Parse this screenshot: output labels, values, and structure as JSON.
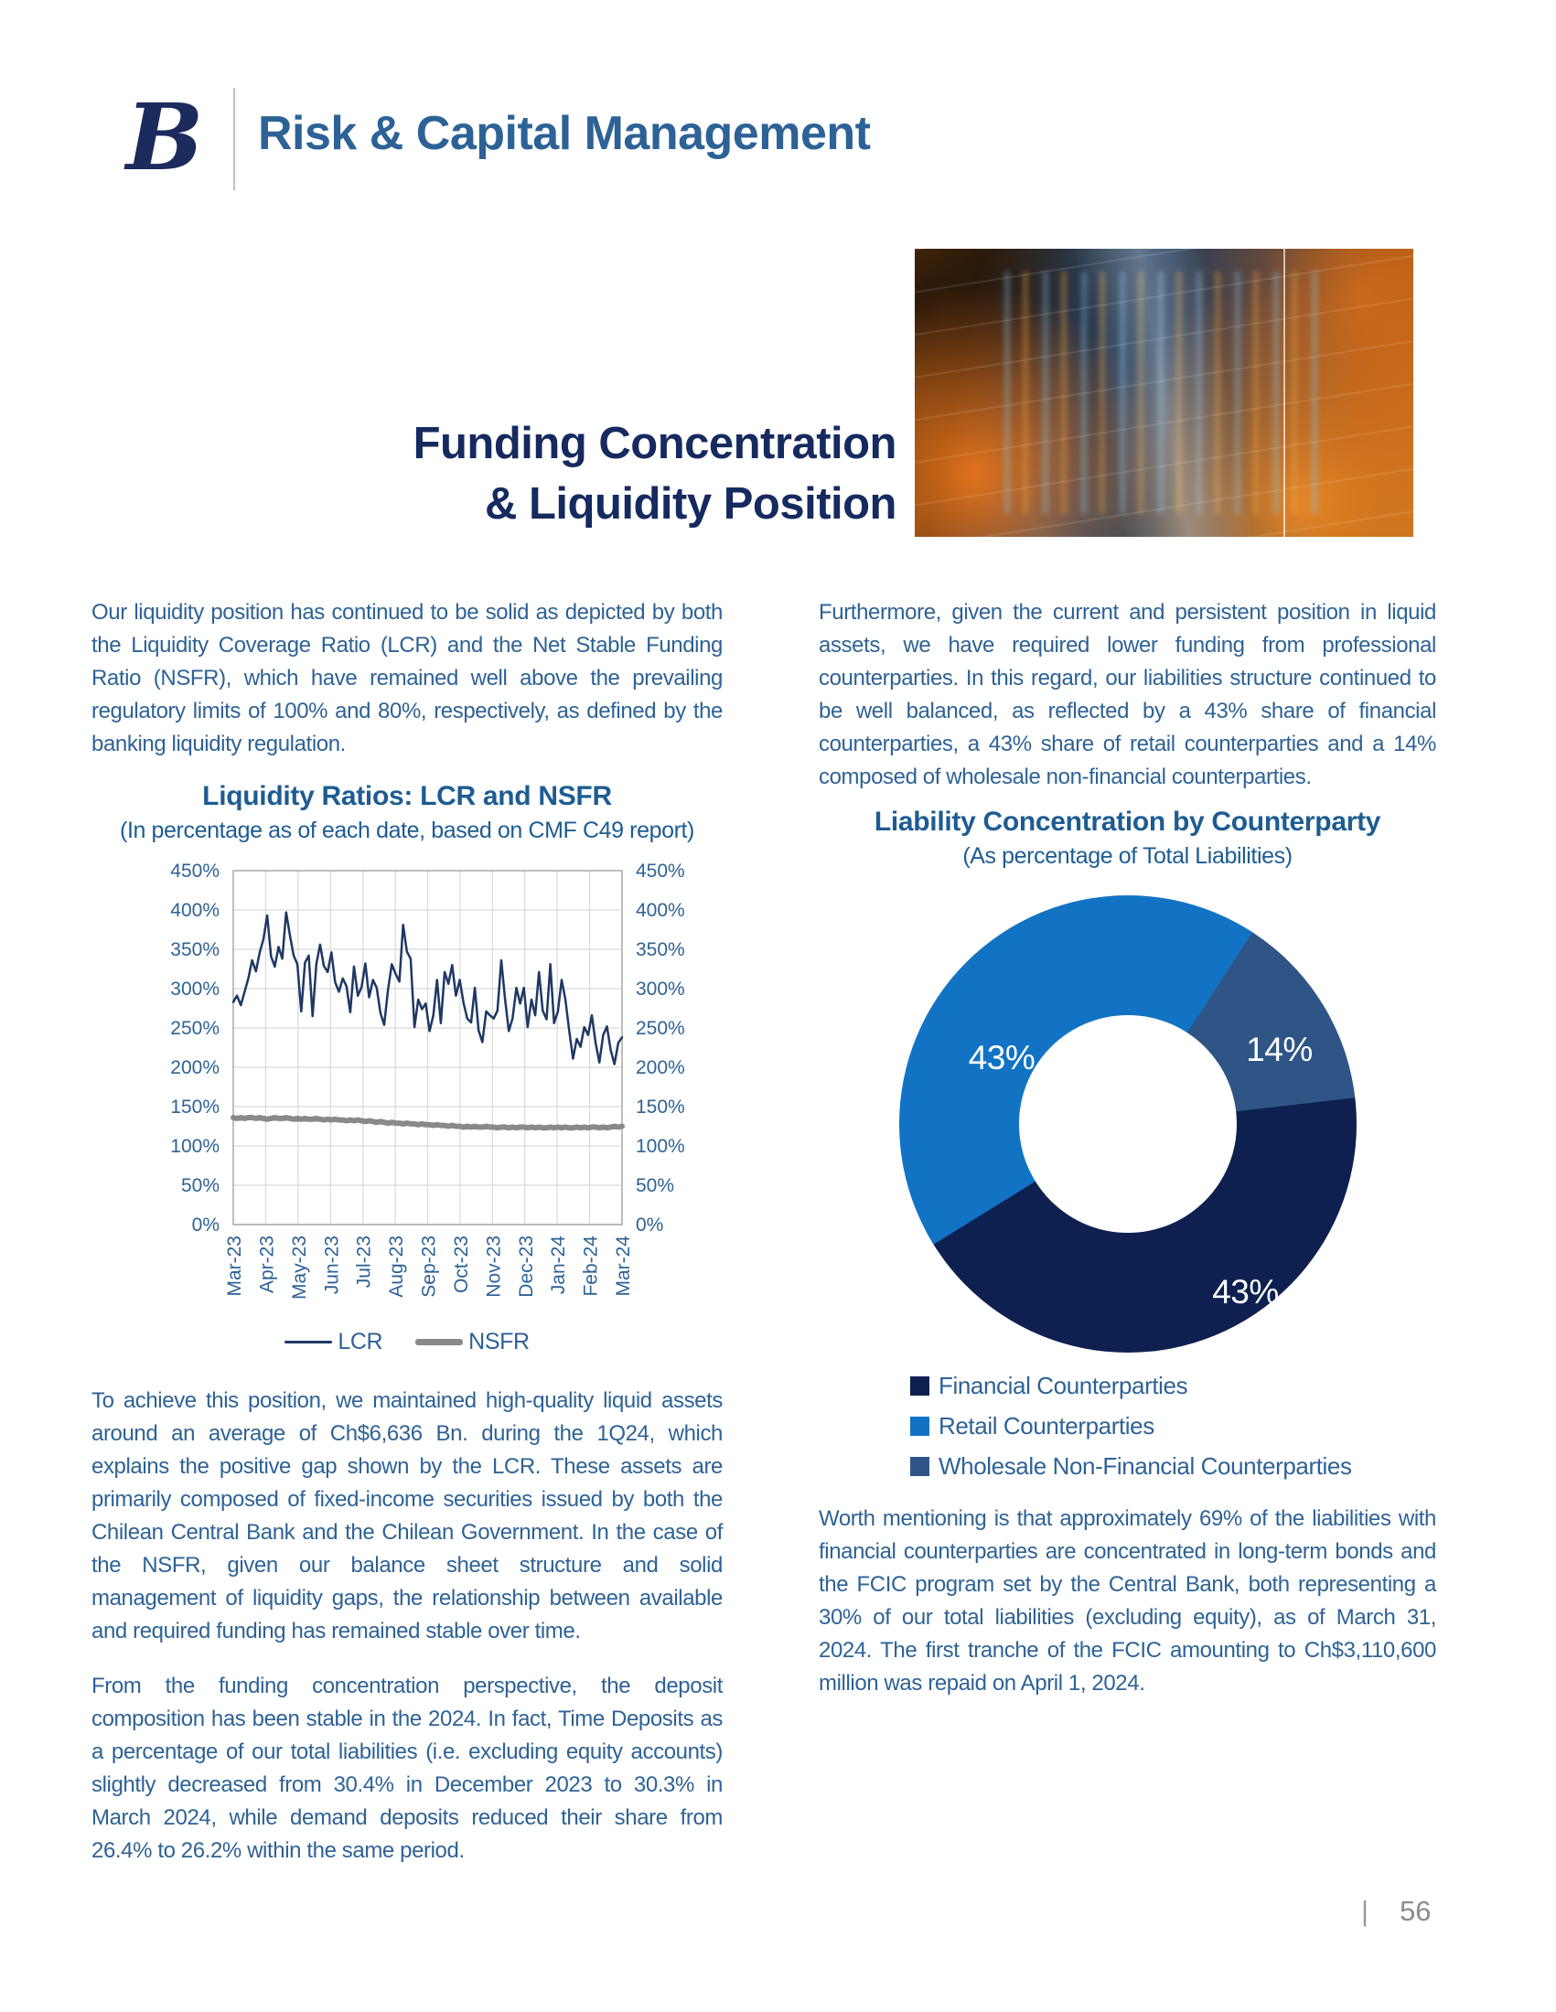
{
  "header": {
    "logo_letter": "B",
    "title": "Risk & Capital Management"
  },
  "hero": {
    "title_line1": "Funding Concentration",
    "title_line2": "& Liquidity Position"
  },
  "left_column": {
    "para1": "Our liquidity position has continued to be solid as depicted by both the Liquidity Coverage Ratio (LCR) and the Net Stable Funding Ratio (NSFR), which have remained well above the prevailing regulatory limits of 100% and 80%, respectively, as defined by the banking liquidity regulation.",
    "para2": "To achieve this position, we maintained high-quality liquid assets around an average of Ch$6,636 Bn. during the 1Q24, which explains the positive gap shown by the LCR. These assets are primarily composed of fixed-income securities issued by both the Chilean Central Bank and the Chilean Government. In the case of the NSFR, given our balance sheet structure and solid management of liquidity gaps, the relationship between available and required funding has remained stable over time.",
    "para3": "From the funding concentration perspective, the deposit composition has been stable in the 2024. In fact, Time Deposits as a percentage of our total liabilities (i.e. excluding equity accounts) slightly decreased from 30.4% in December 2023 to 30.3% in March 2024, while demand deposits reduced their share from 26.4% to 26.2% within the same period."
  },
  "right_column": {
    "para1": "Furthermore, given the current and persistent position in liquid assets, we have required lower funding from professional counterparties. In this regard, our liabilities structure continued to be well balanced, as reflected by a 43% share of financial counterparties, a 43% share of retail counterparties and a 14% composed of wholesale non-financial counterparties.",
    "para2": "Worth mentioning is that approximately 69% of the liabilities with financial counterparties are concentrated in long-term bonds and the FCIC program set by the Central Bank, both representing a 30% of our total liabilities (excluding equity), as of March 31, 2024. The first tranche of the FCIC amounting to Ch$3,110,600 million was repaid on April 1, 2024."
  },
  "footer": {
    "separator": "|",
    "page_number": "56"
  },
  "chart_data": [
    {
      "type": "line",
      "title": "Liquidity Ratios: LCR and NSFR",
      "subtitle": "(In percentage as of each date, based on CMF C49 report)",
      "x_tick_labels": [
        "Mar-23",
        "Apr-23",
        "May-23",
        "Jun-23",
        "Jul-23",
        "Aug-23",
        "Sep-23",
        "Oct-23",
        "Nov-23",
        "Dec-23",
        "Jan-24",
        "Feb-24",
        "Mar-24"
      ],
      "ylim": [
        0,
        450
      ],
      "y_tick_step": 50,
      "y_axis_unit": "%",
      "dual_y_axis": true,
      "grid": true,
      "legend_position": "bottom",
      "series": [
        {
          "name": "LCR",
          "color": "#1F3864",
          "width": 2.5,
          "values": [
            283,
            291,
            279,
            296,
            313,
            336,
            322,
            346,
            363,
            393,
            341,
            328,
            353,
            338,
            397,
            368,
            342,
            331,
            271,
            333,
            342,
            265,
            331,
            356,
            329,
            321,
            346,
            308,
            296,
            313,
            303,
            270,
            328,
            291,
            302,
            332,
            289,
            311,
            301,
            269,
            254,
            299,
            331,
            319,
            309,
            381,
            347,
            338,
            251,
            286,
            274,
            281,
            246,
            266,
            311,
            256,
            321,
            306,
            330,
            291,
            311,
            282,
            262,
            257,
            301,
            247,
            232,
            271,
            266,
            262,
            272,
            336,
            287,
            246,
            262,
            301,
            281,
            301,
            251,
            286,
            266,
            321,
            272,
            261,
            331,
            256,
            271,
            311,
            286,
            247,
            211,
            236,
            226,
            251,
            241,
            266,
            231,
            206,
            241,
            252,
            222,
            204,
            231,
            238
          ]
        },
        {
          "name": "NSFR",
          "color": "#898989",
          "width": 6,
          "values": [
            136,
            135,
            136,
            135,
            136,
            136,
            135,
            136,
            135,
            134,
            135,
            136,
            135,
            135,
            136,
            135,
            134,
            135,
            134,
            135,
            134,
            134,
            135,
            134,
            133,
            134,
            133,
            134,
            133,
            133,
            132,
            133,
            132,
            133,
            132,
            131,
            132,
            131,
            130,
            131,
            130,
            129,
            130,
            129,
            129,
            128,
            129,
            128,
            128,
            127,
            128,
            127,
            127,
            126,
            127,
            126,
            126,
            125,
            126,
            125,
            125,
            124,
            125,
            124,
            125,
            124,
            124,
            125,
            124,
            124,
            123,
            124,
            124,
            123,
            124,
            123,
            124,
            124,
            123,
            124,
            123,
            124,
            123,
            123,
            124,
            123,
            124,
            123,
            124,
            123,
            123,
            124,
            123,
            124,
            123,
            124,
            124,
            123,
            124,
            123,
            124,
            125,
            124,
            125
          ]
        }
      ]
    },
    {
      "type": "pie",
      "subtype": "donut",
      "title": "Liability Concentration by Counterparty",
      "subtitle": "(As percentage of Total Liabilities)",
      "start_angle_deg": -121.8,
      "draw_order": [
        "Retail Counterparties",
        "Wholesale Non-Financial Counterparties",
        "Financial Counterparties"
      ],
      "segments": [
        {
          "label": "Financial Counterparties",
          "value": 43,
          "data_label": "43%",
          "color": "#0D2050",
          "label_pos": {
            "x": 0.758,
            "y": 0.868
          }
        },
        {
          "label": "Retail Counterparties",
          "value": 43,
          "data_label": "43%",
          "color": "#1273C4",
          "label_pos": {
            "x": 0.225,
            "y": 0.355
          }
        },
        {
          "label": "Wholesale Non-Financial Counterparties",
          "value": 14,
          "data_label": "14%",
          "color": "#2E5586",
          "label_pos": {
            "x": 0.832,
            "y": 0.338
          }
        }
      ]
    }
  ]
}
